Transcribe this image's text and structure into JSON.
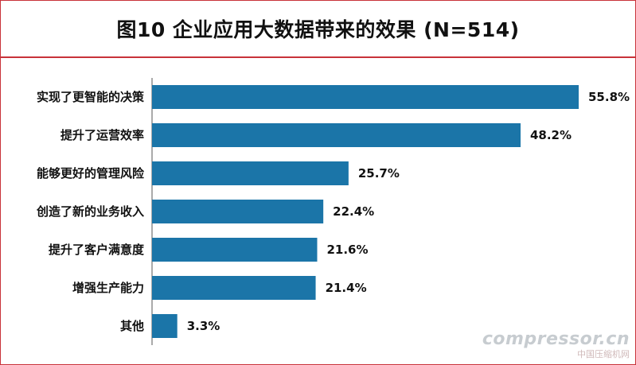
{
  "title": "图10 企业应用大数据带来的效果 (N=514)",
  "colors": {
    "bar": "#1b75a8",
    "border": "#c8323a",
    "text": "#111111"
  },
  "watermark": {
    "main": "compressor.cn",
    "sub": "中国压缩机网"
  },
  "chart_data": {
    "type": "bar",
    "orientation": "horizontal",
    "title": "图10 企业应用大数据带来的效果 (N=514)",
    "categories": [
      "实现了更智能的决策",
      "提升了运营效率",
      "能够更好的管理风险",
      "创造了新的业务收入",
      "提升了客户满意度",
      "增强生产能力",
      "其他"
    ],
    "values": [
      55.8,
      48.2,
      25.7,
      22.4,
      21.6,
      21.4,
      3.3
    ],
    "value_labels": [
      "55.8%",
      "48.2%",
      "25.7%",
      "22.4%",
      "21.6%",
      "21.4%",
      "3.3%"
    ],
    "unit": "%",
    "xlim": [
      0,
      55.8
    ],
    "grid": false,
    "legend": "none"
  }
}
